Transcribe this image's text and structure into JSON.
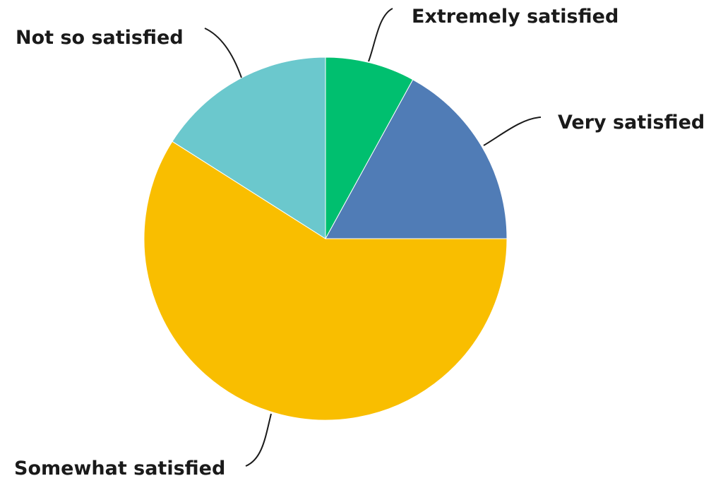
{
  "chart_data": {
    "type": "pie",
    "title": "",
    "slices": [
      {
        "label": "Extremely satisfied",
        "value": 8,
        "color": "#00BF6F"
      },
      {
        "label": "Very satisfied",
        "value": 17,
        "color": "#507CB6"
      },
      {
        "label": "Somewhat satisfied",
        "value": 59,
        "color": "#F9BE00"
      },
      {
        "label": "Not so satisfied",
        "value": 16,
        "color": "#6BC8CD"
      }
    ],
    "start_angle_deg": 0,
    "direction": "clockwise",
    "legend": "none",
    "label_style": "leader-lines"
  }
}
